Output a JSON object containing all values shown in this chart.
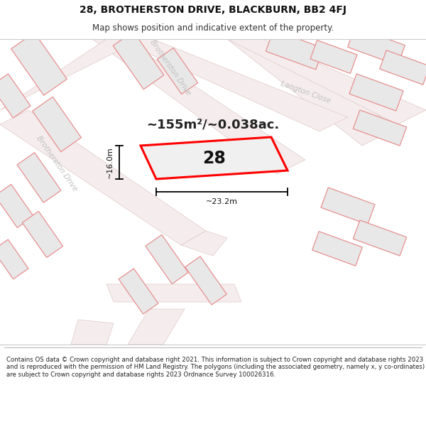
{
  "title_line1": "28, BROTHERSTON DRIVE, BLACKBURN, BB2 4FJ",
  "title_line2": "Map shows position and indicative extent of the property.",
  "footer_text": "Contains OS data © Crown copyright and database right 2021. This information is subject to Crown copyright and database rights 2023 and is reproduced with the permission of HM Land Registry. The polygons (including the associated geometry, namely x, y co-ordinates) are subject to Crown copyright and database rights 2023 Ordnance Survey 100026316.",
  "area_text": "~155m²/~0.038ac.",
  "number_text": "28",
  "dim_width": "~23.2m",
  "dim_height": "~16.0m",
  "bg_color": "#f2f2f2",
  "road_fill": "#f5eded",
  "road_edge": "#e0c8c8",
  "building_fill": "#e8e8e8",
  "building_edge": "#c8c8c8",
  "neighbor_edge": "#e89090",
  "property_edge": "#ff0000",
  "property_fill": "#f0f0f0",
  "street_label_color": "#c0c0c0",
  "title_fontsize": 10,
  "subtitle_fontsize": 8.5,
  "footer_fontsize": 6.2,
  "area_fontsize": 13,
  "number_fontsize": 17,
  "dim_fontsize": 8
}
